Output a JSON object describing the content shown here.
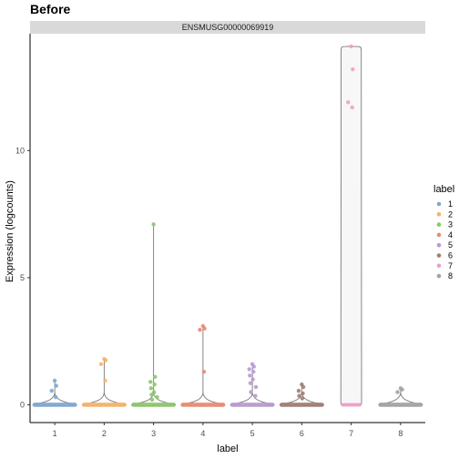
{
  "chart_data": {
    "type": "violin",
    "title": "Before",
    "facet_label": "ENSMUSG00000069919",
    "xlabel": "label",
    "ylabel": "Expression (logcounts)",
    "categories": [
      "1",
      "2",
      "3",
      "4",
      "5",
      "6",
      "7",
      "8"
    ],
    "ylim": [
      -0.7,
      14.6
    ],
    "yticks": [
      0,
      5,
      10
    ],
    "ytick_labels": [
      "0",
      "5",
      "10"
    ],
    "grid": false,
    "legend": {
      "title": "label",
      "position": "right",
      "entries": [
        "1",
        "2",
        "3",
        "4",
        "5",
        "6",
        "7",
        "8"
      ]
    },
    "colors": [
      "#7fa7d2",
      "#f6b26b",
      "#8cc66b",
      "#ea8a72",
      "#b79bd0",
      "#a07d72",
      "#ee9fc9",
      "#a3a3a3"
    ],
    "series": [
      {
        "label": "1",
        "outliers": [
          0.95,
          0.75,
          0.55,
          0.3
        ],
        "violin": {
          "max": 0.95,
          "width": 0.45
        }
      },
      {
        "label": "2",
        "outliers": [
          1.8,
          1.75,
          1.6,
          0.95
        ],
        "violin": {
          "max": 1.8,
          "width": 0.45
        }
      },
      {
        "label": "3",
        "outliers": [
          7.1,
          1.1,
          0.9,
          0.8,
          0.65,
          0.5,
          0.4,
          0.3,
          0.2
        ],
        "violin": {
          "max": 7.1,
          "width": 0.45
        }
      },
      {
        "label": "4",
        "outliers": [
          3.1,
          3.0,
          2.95,
          1.3
        ],
        "violin": {
          "max": 3.1,
          "width": 0.45
        }
      },
      {
        "label": "5",
        "outliers": [
          1.6,
          1.5,
          1.4,
          1.3,
          1.15,
          1.0,
          0.85,
          0.7,
          0.5,
          0.35
        ],
        "violin": {
          "max": 1.6,
          "width": 0.45
        }
      },
      {
        "label": "6",
        "outliers": [
          0.8,
          0.7,
          0.55,
          0.45,
          0.35,
          0.25
        ],
        "violin": {
          "max": 0.8,
          "width": 0.45
        }
      },
      {
        "label": "7",
        "outliers": [
          14.1,
          13.2,
          11.9,
          11.7
        ],
        "violin": {
          "max": 14.1,
          "width": 0.2
        }
      },
      {
        "label": "8",
        "outliers": [
          0.65,
          0.6,
          0.5
        ],
        "violin": {
          "max": 0.65,
          "width": 0.45
        }
      }
    ]
  }
}
